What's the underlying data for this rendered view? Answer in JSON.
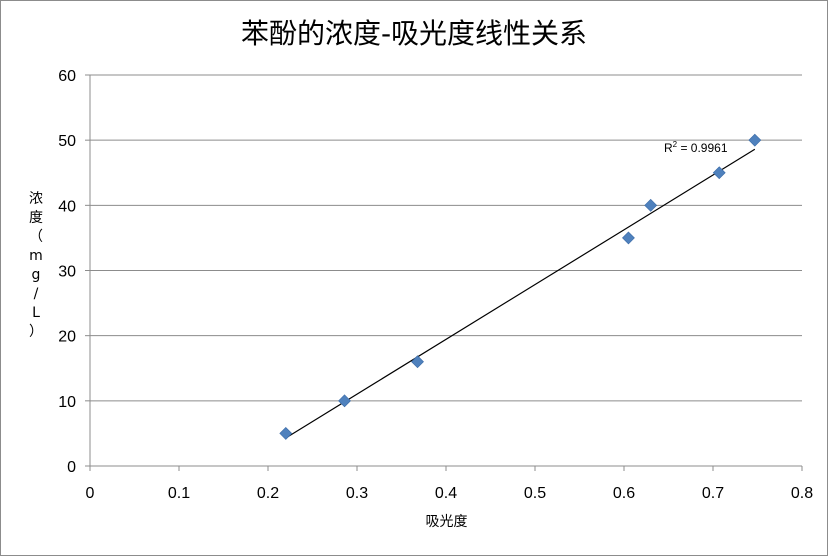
{
  "chart_data": {
    "type": "scatter",
    "title": "苯酚的浓度-吸光度线性关系",
    "xlabel": "吸光度",
    "ylabel": "浓度（mg/L）",
    "xlim": [
      0,
      0.8
    ],
    "ylim": [
      0,
      60
    ],
    "x_ticks": [
      "0",
      "0.1",
      "0.2",
      "0.3",
      "0.4",
      "0.5",
      "0.6",
      "0.7",
      "0.8"
    ],
    "y_ticks": [
      "0",
      "10",
      "20",
      "30",
      "40",
      "50",
      "60"
    ],
    "grid": "horizontal",
    "legend": "none",
    "series": [
      {
        "points": [
          {
            "x": 0.22,
            "y": 5
          },
          {
            "x": 0.286,
            "y": 10
          },
          {
            "x": 0.368,
            "y": 16
          },
          {
            "x": 0.605,
            "y": 35
          },
          {
            "x": 0.63,
            "y": 40
          },
          {
            "x": 0.707,
            "y": 45
          },
          {
            "x": 0.747,
            "y": 50
          }
        ],
        "color": "#4f81bd"
      }
    ],
    "trendline": {
      "type": "linear",
      "x_range": [
        0.22,
        0.747
      ],
      "y_range": [
        4.3,
        48.6
      ],
      "color": "#000000",
      "r2_label_prefix": "R",
      "r2_label_sup": "2",
      "r2_label_value": " = 0.9961"
    }
  }
}
